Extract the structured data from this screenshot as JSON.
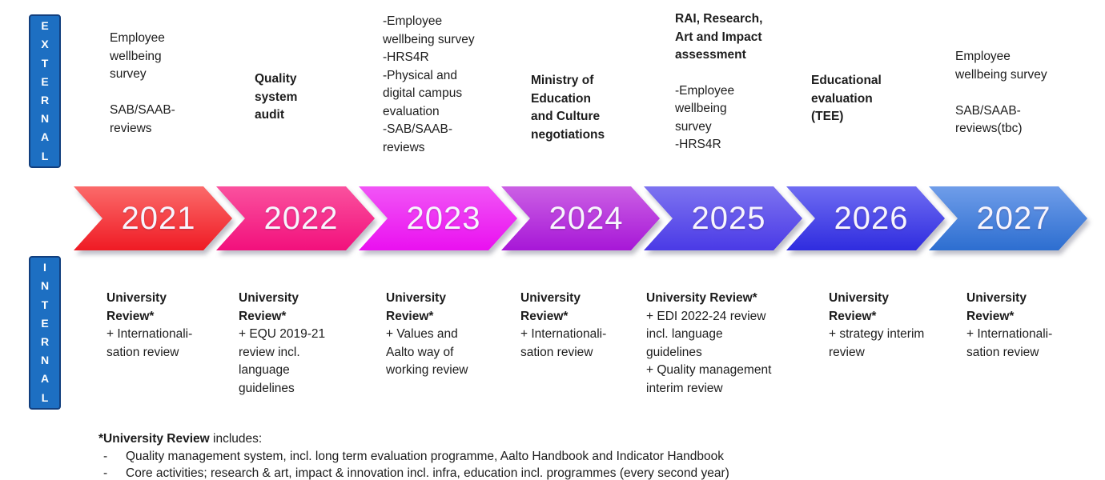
{
  "labels": {
    "external": "EXTERNAL",
    "internal": "INTERNAL"
  },
  "colors": {
    "axis_box_fill": "#1d6fc2",
    "axis_box_border": "#123f7e",
    "axis_text": "#ffffff",
    "body_text": "#1d1d1d",
    "year_text": "#f7f5fd"
  },
  "timeline": {
    "years": [
      {
        "label": "2021",
        "color_top": "#fb6a6a",
        "color_bottom": "#ef1b24"
      },
      {
        "label": "2022",
        "color_top": "#fa519e",
        "color_bottom": "#f2107c"
      },
      {
        "label": "2023",
        "color_top": "#f155f6",
        "color_bottom": "#ea10f0"
      },
      {
        "label": "2024",
        "color_top": "#cb60e4",
        "color_bottom": "#a717d7"
      },
      {
        "label": "2025",
        "color_top": "#7d73f0",
        "color_bottom": "#4a3ae6"
      },
      {
        "label": "2026",
        "color_top": "#6f6cf2",
        "color_bottom": "#2f2cdf"
      },
      {
        "label": "2027",
        "color_top": "#6f9de9",
        "color_bottom": "#2d6ed0"
      }
    ]
  },
  "columns": [
    {
      "year": "2021",
      "external": {
        "bold": "",
        "regular": "Employee\nwellbeing\nsurvey\n\nSAB/SAAB-\nreviews"
      },
      "internal": {
        "bold": "University\nReview*",
        "regular": "+ Internationali-\nsation review"
      }
    },
    {
      "year": "2022",
      "external": {
        "bold": "Quality\nsystem\naudit",
        "regular": ""
      },
      "internal": {
        "bold": "University\nReview*",
        "regular": "+ EQU 2019-21\nreview incl.\nlanguage\nguidelines"
      }
    },
    {
      "year": "2023",
      "external": {
        "bold": "",
        "regular": "-Employee\nwellbeing survey\n-HRS4R\n-Physical and\ndigital campus\nevaluation\n-SAB/SAAB-\nreviews"
      },
      "internal": {
        "bold": "University\nReview*",
        "regular": "+ Values and\nAalto way of\nworking review"
      }
    },
    {
      "year": "2024",
      "external": {
        "bold": "Ministry of\nEducation\nand Culture\nnegotiations",
        "regular": ""
      },
      "internal": {
        "bold": "University\nReview*",
        "regular": "+ Internationali-\nsation review"
      }
    },
    {
      "year": "2025",
      "external": {
        "bold": "RAI, Research,\nArt and Impact\nassessment",
        "regular": "-Employee\nwellbeing\nsurvey\n-HRS4R"
      },
      "internal": {
        "bold": "University Review*",
        "regular": "+ EDI 2022-24 review\nincl. language\nguidelines\n+ Quality management\ninterim review"
      }
    },
    {
      "year": "2026",
      "external": {
        "bold": "Educational\nevaluation\n(TEE)",
        "regular": ""
      },
      "internal": {
        "bold": "University\nReview*",
        "regular": "+ strategy interim\nreview"
      }
    },
    {
      "year": "2027",
      "external": {
        "bold": "",
        "regular": "Employee\nwellbeing survey\n\nSAB/SAAB-\nreviews(tbc)"
      },
      "internal": {
        "bold": "University\nReview*",
        "regular": "+ Internationali-\nsation review"
      }
    }
  ],
  "footnote": {
    "title_bold": "*University Review",
    "title_rest": " includes:",
    "bullet_marker": "-",
    "bullets": [
      "Quality management system, incl. long term evaluation programme, Aalto Handbook and Indicator Handbook",
      "Core activities; research & art, impact & innovation incl. infra, education incl. programmes (every second year)"
    ]
  }
}
